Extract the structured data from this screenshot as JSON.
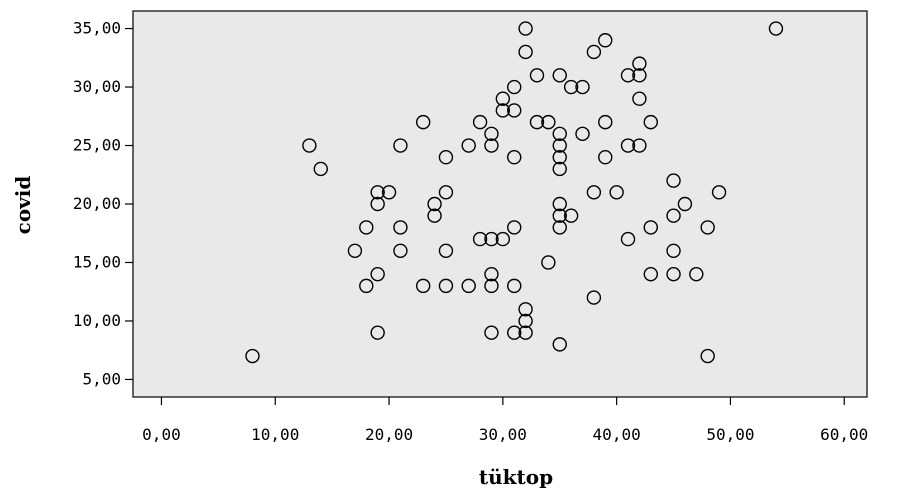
{
  "chart_data": {
    "type": "scatter",
    "title": "",
    "xlabel": "tüktop",
    "ylabel": "covid",
    "xlim": [
      -2.5,
      62
    ],
    "ylim": [
      3.5,
      36.5
    ],
    "x_ticks": [
      0,
      10,
      20,
      30,
      40,
      50,
      60
    ],
    "y_ticks": [
      5,
      10,
      15,
      20,
      25,
      30,
      35
    ],
    "x_tick_labels": [
      "0,00",
      "10,00",
      "20,00",
      "30,00",
      "40,00",
      "50,00",
      "60,00"
    ],
    "y_tick_labels": [
      "5,00",
      "10,00",
      "15,00",
      "20,00",
      "25,00",
      "30,00",
      "35,00"
    ],
    "grid": false,
    "background": "#e9e9e9",
    "marker": "open-circle",
    "points": [
      {
        "x": 8,
        "y": 7
      },
      {
        "x": 13,
        "y": 25
      },
      {
        "x": 14,
        "y": 23
      },
      {
        "x": 17,
        "y": 16
      },
      {
        "x": 18,
        "y": 18
      },
      {
        "x": 18,
        "y": 13
      },
      {
        "x": 19,
        "y": 21
      },
      {
        "x": 19,
        "y": 20
      },
      {
        "x": 19,
        "y": 14
      },
      {
        "x": 19,
        "y": 9
      },
      {
        "x": 20,
        "y": 21
      },
      {
        "x": 21,
        "y": 25
      },
      {
        "x": 21,
        "y": 18
      },
      {
        "x": 21,
        "y": 16
      },
      {
        "x": 23,
        "y": 27
      },
      {
        "x": 23,
        "y": 13
      },
      {
        "x": 24,
        "y": 20
      },
      {
        "x": 24,
        "y": 19
      },
      {
        "x": 25,
        "y": 24
      },
      {
        "x": 25,
        "y": 21
      },
      {
        "x": 25,
        "y": 16
      },
      {
        "x": 25,
        "y": 13
      },
      {
        "x": 27,
        "y": 25
      },
      {
        "x": 27,
        "y": 13
      },
      {
        "x": 28,
        "y": 27
      },
      {
        "x": 28,
        "y": 17
      },
      {
        "x": 29,
        "y": 26
      },
      {
        "x": 29,
        "y": 25
      },
      {
        "x": 29,
        "y": 17
      },
      {
        "x": 29,
        "y": 14
      },
      {
        "x": 29,
        "y": 13
      },
      {
        "x": 29,
        "y": 9
      },
      {
        "x": 30,
        "y": 29
      },
      {
        "x": 30,
        "y": 28
      },
      {
        "x": 30,
        "y": 17
      },
      {
        "x": 31,
        "y": 30
      },
      {
        "x": 31,
        "y": 28
      },
      {
        "x": 31,
        "y": 24
      },
      {
        "x": 31,
        "y": 18
      },
      {
        "x": 31,
        "y": 13
      },
      {
        "x": 31,
        "y": 9
      },
      {
        "x": 32,
        "y": 35
      },
      {
        "x": 32,
        "y": 33
      },
      {
        "x": 32,
        "y": 11
      },
      {
        "x": 32,
        "y": 10
      },
      {
        "x": 32,
        "y": 9
      },
      {
        "x": 33,
        "y": 31
      },
      {
        "x": 33,
        "y": 27
      },
      {
        "x": 34,
        "y": 27
      },
      {
        "x": 34,
        "y": 15
      },
      {
        "x": 35,
        "y": 31
      },
      {
        "x": 35,
        "y": 26
      },
      {
        "x": 35,
        "y": 25
      },
      {
        "x": 35,
        "y": 24
      },
      {
        "x": 35,
        "y": 23
      },
      {
        "x": 35,
        "y": 20
      },
      {
        "x": 35,
        "y": 19
      },
      {
        "x": 35,
        "y": 18
      },
      {
        "x": 35,
        "y": 8
      },
      {
        "x": 36,
        "y": 30
      },
      {
        "x": 36,
        "y": 19
      },
      {
        "x": 37,
        "y": 30
      },
      {
        "x": 37,
        "y": 26
      },
      {
        "x": 38,
        "y": 33
      },
      {
        "x": 38,
        "y": 21
      },
      {
        "x": 38,
        "y": 12
      },
      {
        "x": 39,
        "y": 34
      },
      {
        "x": 39,
        "y": 27
      },
      {
        "x": 39,
        "y": 24
      },
      {
        "x": 40,
        "y": 21
      },
      {
        "x": 41,
        "y": 31
      },
      {
        "x": 41,
        "y": 25
      },
      {
        "x": 41,
        "y": 17
      },
      {
        "x": 42,
        "y": 32
      },
      {
        "x": 42,
        "y": 31
      },
      {
        "x": 42,
        "y": 29
      },
      {
        "x": 42,
        "y": 25
      },
      {
        "x": 43,
        "y": 27
      },
      {
        "x": 43,
        "y": 18
      },
      {
        "x": 43,
        "y": 14
      },
      {
        "x": 45,
        "y": 22
      },
      {
        "x": 45,
        "y": 19
      },
      {
        "x": 45,
        "y": 16
      },
      {
        "x": 45,
        "y": 14
      },
      {
        "x": 46,
        "y": 20
      },
      {
        "x": 47,
        "y": 14
      },
      {
        "x": 48,
        "y": 18
      },
      {
        "x": 48,
        "y": 7
      },
      {
        "x": 49,
        "y": 21
      },
      {
        "x": 54,
        "y": 35
      }
    ]
  }
}
